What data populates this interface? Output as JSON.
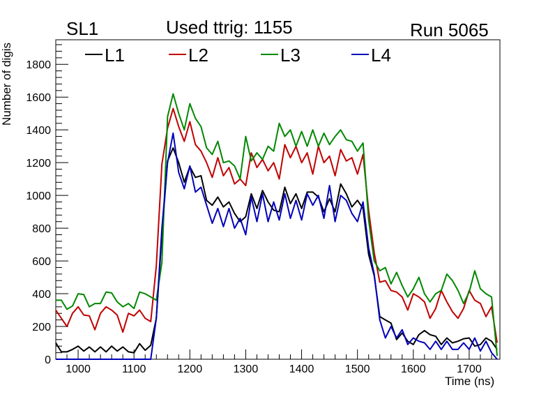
{
  "titles": {
    "left": "SL1",
    "center": "Used ttrig: 1155",
    "right": "Run 5065"
  },
  "chart_data": {
    "type": "line",
    "xlabel": "Time (ns)",
    "ylabel": "Number of digis",
    "xlim": [
      960,
      1755
    ],
    "ylim": [
      0,
      1950
    ],
    "xticks": [
      1000,
      1100,
      1200,
      1300,
      1400,
      1500,
      1600,
      1700
    ],
    "yticks": [
      0,
      200,
      400,
      600,
      800,
      1000,
      1200,
      1400,
      1600,
      1800
    ],
    "legend_placement": "top-left",
    "grid": false,
    "x": [
      960,
      970,
      980,
      990,
      1000,
      1010,
      1020,
      1030,
      1040,
      1050,
      1060,
      1070,
      1080,
      1090,
      1100,
      1110,
      1120,
      1130,
      1140,
      1150,
      1160,
      1170,
      1180,
      1190,
      1200,
      1210,
      1220,
      1230,
      1240,
      1250,
      1260,
      1270,
      1280,
      1290,
      1300,
      1310,
      1320,
      1330,
      1340,
      1350,
      1360,
      1370,
      1380,
      1390,
      1400,
      1410,
      1420,
      1430,
      1440,
      1450,
      1460,
      1470,
      1480,
      1490,
      1500,
      1510,
      1520,
      1530,
      1540,
      1550,
      1560,
      1570,
      1580,
      1590,
      1600,
      1610,
      1620,
      1630,
      1640,
      1650,
      1660,
      1670,
      1680,
      1690,
      1700,
      1710,
      1720,
      1730,
      1740,
      1750
    ],
    "series": [
      {
        "name": "L1",
        "color": "#000000",
        "values": [
          100,
          45,
          45,
          60,
          80,
          50,
          75,
          45,
          75,
          45,
          80,
          50,
          75,
          45,
          40,
          95,
          55,
          85,
          250,
          760,
          1210,
          1290,
          1200,
          1080,
          1175,
          1110,
          1120,
          970,
          940,
          990,
          930,
          960,
          890,
          840,
          870,
          1010,
          920,
          1030,
          960,
          910,
          900,
          1050,
          950,
          1010,
          920,
          1020,
          1020,
          990,
          900,
          980,
          900,
          1070,
          1010,
          930,
          970,
          920,
          640,
          510,
          260,
          240,
          220,
          120,
          160,
          110,
          90,
          150,
          175,
          150,
          140,
          90,
          130,
          100,
          110,
          125,
          130,
          80,
          90,
          130,
          110,
          60
        ]
      },
      {
        "name": "L2",
        "color": "#c00000",
        "values": [
          300,
          250,
          200,
          280,
          320,
          270,
          265,
          180,
          280,
          320,
          300,
          270,
          165,
          280,
          265,
          300,
          250,
          230,
          570,
          1190,
          1410,
          1530,
          1420,
          1330,
          1450,
          1310,
          1270,
          1200,
          1110,
          1230,
          1120,
          1170,
          1070,
          1100,
          1060,
          1260,
          1170,
          1220,
          1150,
          1200,
          1100,
          1310,
          1230,
          1300,
          1200,
          1260,
          1130,
          1300,
          1200,
          1240,
          1120,
          1280,
          1210,
          1230,
          1130,
          1250,
          910,
          650,
          470,
          480,
          420,
          410,
          380,
          300,
          400,
          380,
          350,
          250,
          310,
          420,
          350,
          290,
          250,
          310,
          420,
          360,
          340,
          260,
          320,
          100
        ]
      },
      {
        "name": "L3",
        "color": "#008800",
        "values": [
          360,
          360,
          305,
          325,
          400,
          395,
          320,
          340,
          340,
          410,
          405,
          350,
          320,
          340,
          310,
          410,
          400,
          380,
          360,
          590,
          1480,
          1620,
          1500,
          1400,
          1560,
          1470,
          1420,
          1290,
          1250,
          1330,
          1200,
          1210,
          1180,
          1100,
          1360,
          1210,
          1260,
          1220,
          1300,
          1270,
          1440,
          1360,
          1400,
          1300,
          1390,
          1300,
          1400,
          1300,
          1380,
          1310,
          1360,
          1400,
          1340,
          1330,
          1270,
          1320,
          850,
          600,
          540,
          560,
          460,
          530,
          450,
          380,
          430,
          500,
          400,
          350,
          400,
          420,
          520,
          480,
          420,
          340,
          410,
          540,
          430,
          400,
          380,
          20
        ]
      },
      {
        "name": "L4",
        "color": "#0000bb",
        "values": [
          0,
          0,
          0,
          0,
          0,
          0,
          0,
          0,
          0,
          0,
          0,
          0,
          0,
          0,
          0,
          0,
          0,
          0,
          250,
          800,
          1200,
          1380,
          1140,
          1040,
          1180,
          1020,
          1050,
          940,
          830,
          920,
          810,
          920,
          800,
          860,
          760,
          990,
          840,
          1010,
          840,
          960,
          850,
          1010,
          860,
          970,
          850,
          1010,
          940,
          1000,
          860,
          1060,
          840,
          1000,
          970,
          890,
          840,
          960,
          680,
          520,
          240,
          130,
          200,
          130,
          180,
          90,
          130,
          110,
          100,
          60,
          110,
          60,
          110,
          60,
          60,
          100,
          60,
          130,
          50,
          110,
          40,
          0
        ]
      }
    ]
  }
}
